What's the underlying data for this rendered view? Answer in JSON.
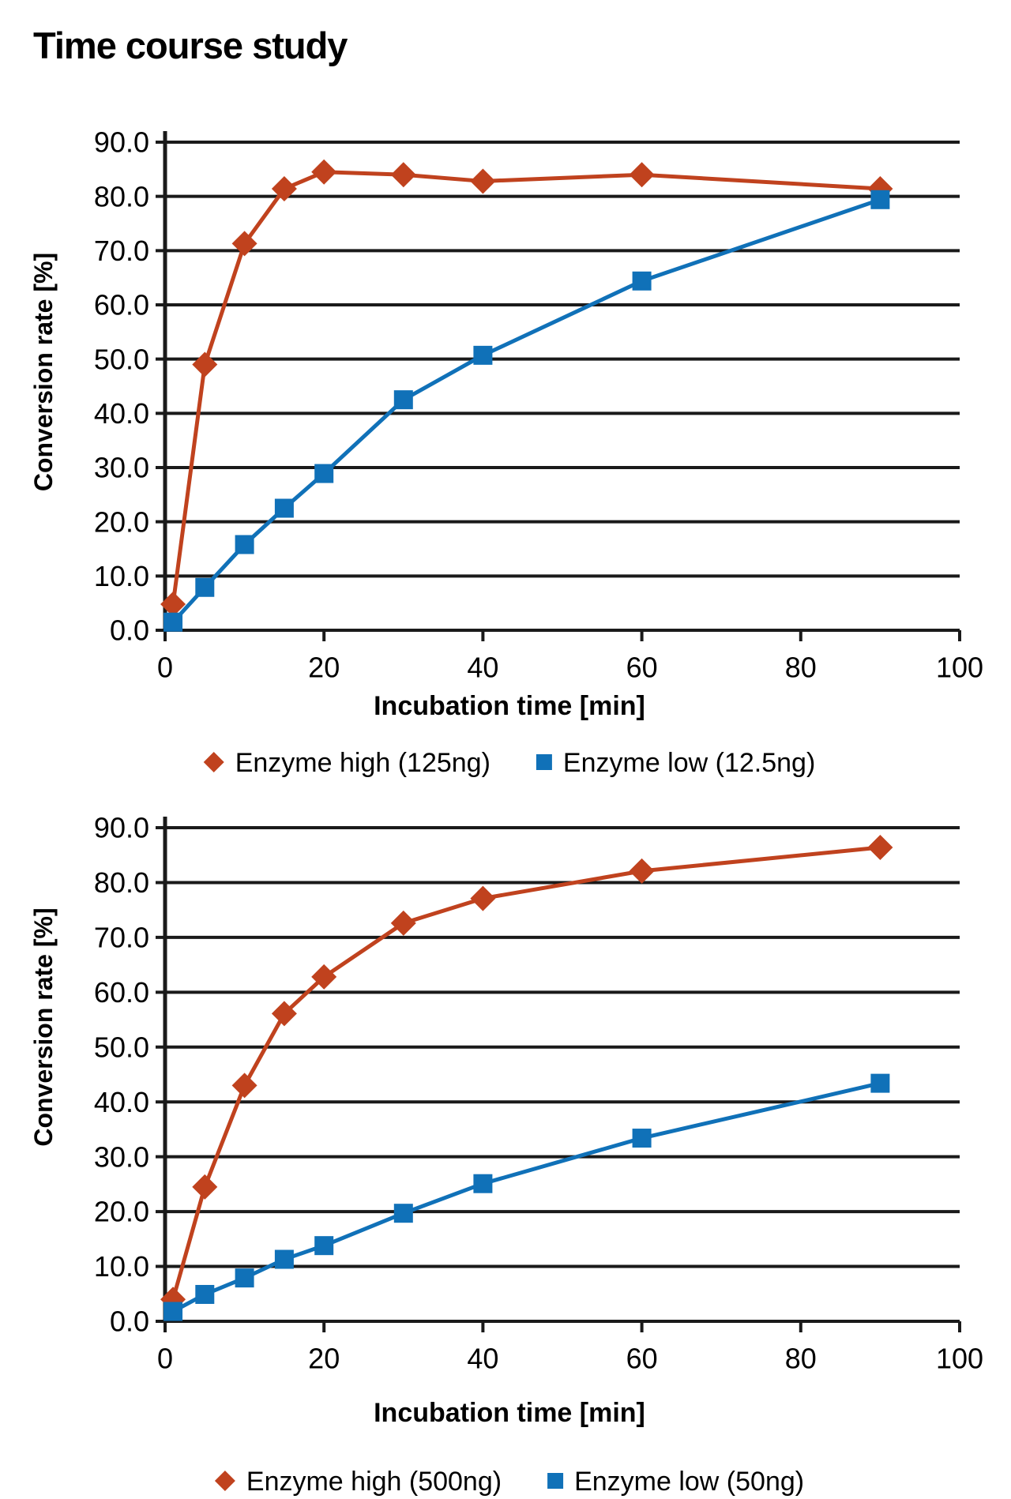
{
  "page": {
    "title": "Time course study"
  },
  "styles": {
    "grid_color": "#1a1a1a",
    "text_color": "#000000",
    "high_color": "#c0421e",
    "low_color": "#1071b8"
  },
  "chart_data": [
    {
      "type": "line",
      "title": "",
      "xlabel": "Incubation time [min]",
      "ylabel": "Conversion rate [%]",
      "x": [
        1,
        5,
        10,
        15,
        20,
        30,
        40,
        60,
        90
      ],
      "xlim": [
        0,
        100
      ],
      "ylim": [
        0,
        90
      ],
      "xticks": [
        0,
        20,
        40,
        60,
        80,
        100
      ],
      "ytick_step": 10,
      "ytick_decimals": 1,
      "grid": true,
      "legend_position": "bottom",
      "series": [
        {
          "name": "Enzyme high (125ng)",
          "marker": "diamond",
          "color": "#c0421e",
          "values": [
            4.8,
            49.0,
            71.3,
            81.4,
            84.5,
            84.0,
            82.8,
            84.0,
            81.4
          ]
        },
        {
          "name": "Enzyme low (12.5ng)",
          "marker": "square",
          "color": "#1071b8",
          "values": [
            1.5,
            7.9,
            15.8,
            22.5,
            28.9,
            42.5,
            50.7,
            64.4,
            79.4
          ]
        }
      ]
    },
    {
      "type": "line",
      "title": "",
      "xlabel": "Incubation time [min]",
      "ylabel": "Conversion rate [%]",
      "x": [
        1,
        5,
        10,
        15,
        20,
        30,
        40,
        60,
        90
      ],
      "xlim": [
        0,
        100
      ],
      "ylim": [
        0,
        90
      ],
      "xticks": [
        0,
        20,
        40,
        60,
        80,
        100
      ],
      "ytick_step": 10,
      "ytick_decimals": 1,
      "grid": true,
      "legend_position": "bottom",
      "series": [
        {
          "name": "Enzyme high (500ng)",
          "marker": "diamond",
          "color": "#c0421e",
          "values": [
            4.0,
            24.5,
            43.0,
            56.1,
            62.8,
            72.6,
            77.1,
            82.1,
            86.4
          ]
        },
        {
          "name": "Enzyme low (50ng)",
          "marker": "square",
          "color": "#1071b8",
          "values": [
            1.8,
            4.9,
            7.9,
            11.3,
            13.8,
            19.7,
            25.1,
            33.4,
            43.4
          ]
        }
      ]
    }
  ]
}
